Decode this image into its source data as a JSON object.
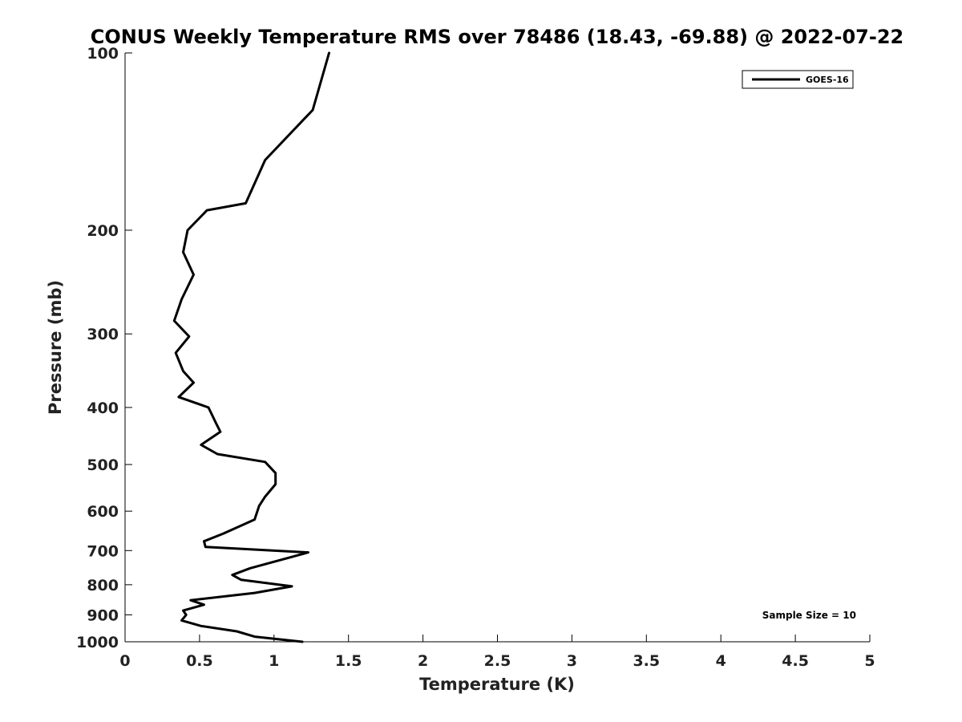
{
  "chart_data": {
    "type": "line",
    "title": "CONUS Weekly Temperature RMS over 78486 (18.43, -69.88) @ 2022-07-22",
    "xlabel": "Temperature (K)",
    "ylabel": "Pressure (mb)",
    "xlim": [
      0,
      5
    ],
    "ylim": [
      100,
      1000
    ],
    "y_scale": "log",
    "y_reversed": true,
    "x_ticks": [
      0,
      0.5,
      1,
      1.5,
      2,
      2.5,
      3,
      3.5,
      4,
      4.5,
      5
    ],
    "x_tick_labels": [
      "0",
      "0.5",
      "1",
      "1.5",
      "2",
      "2.5",
      "3",
      "3.5",
      "4",
      "4.5",
      "5"
    ],
    "y_ticks": [
      100,
      200,
      300,
      400,
      500,
      600,
      700,
      800,
      900,
      1000
    ],
    "y_tick_labels": [
      "100",
      "200",
      "300",
      "400",
      "500",
      "600",
      "700",
      "800",
      "900",
      "1000"
    ],
    "grid": false,
    "legend_position": "top-right",
    "annotation": "Sample Size = 10",
    "series": [
      {
        "name": "GOES-16",
        "color": "#000000",
        "points": [
          [
            1.37,
            100
          ],
          [
            1.26,
            125
          ],
          [
            0.94,
            152
          ],
          [
            0.81,
            180
          ],
          [
            0.55,
            185
          ],
          [
            0.42,
            200
          ],
          [
            0.39,
            218
          ],
          [
            0.46,
            238
          ],
          [
            0.38,
            262
          ],
          [
            0.33,
            285
          ],
          [
            0.43,
            303
          ],
          [
            0.34,
            323
          ],
          [
            0.39,
            347
          ],
          [
            0.46,
            363
          ],
          [
            0.36,
            384
          ],
          [
            0.56,
            400
          ],
          [
            0.61,
            425
          ],
          [
            0.64,
            440
          ],
          [
            0.51,
            463
          ],
          [
            0.62,
            480
          ],
          [
            0.94,
            495
          ],
          [
            1.01,
            517
          ],
          [
            1.01,
            540
          ],
          [
            0.94,
            567
          ],
          [
            0.9,
            588
          ],
          [
            0.87,
            620
          ],
          [
            0.66,
            655
          ],
          [
            0.53,
            675
          ],
          [
            0.54,
            690
          ],
          [
            1.23,
            705
          ],
          [
            0.84,
            750
          ],
          [
            0.72,
            770
          ],
          [
            0.78,
            785
          ],
          [
            1.12,
            805
          ],
          [
            0.87,
            826
          ],
          [
            0.44,
            850
          ],
          [
            0.53,
            865
          ],
          [
            0.39,
            885
          ],
          [
            0.41,
            900
          ],
          [
            0.38,
            920
          ],
          [
            0.51,
            940
          ],
          [
            0.75,
            960
          ],
          [
            0.87,
            980
          ],
          [
            1.19,
            1000
          ]
        ]
      }
    ]
  }
}
